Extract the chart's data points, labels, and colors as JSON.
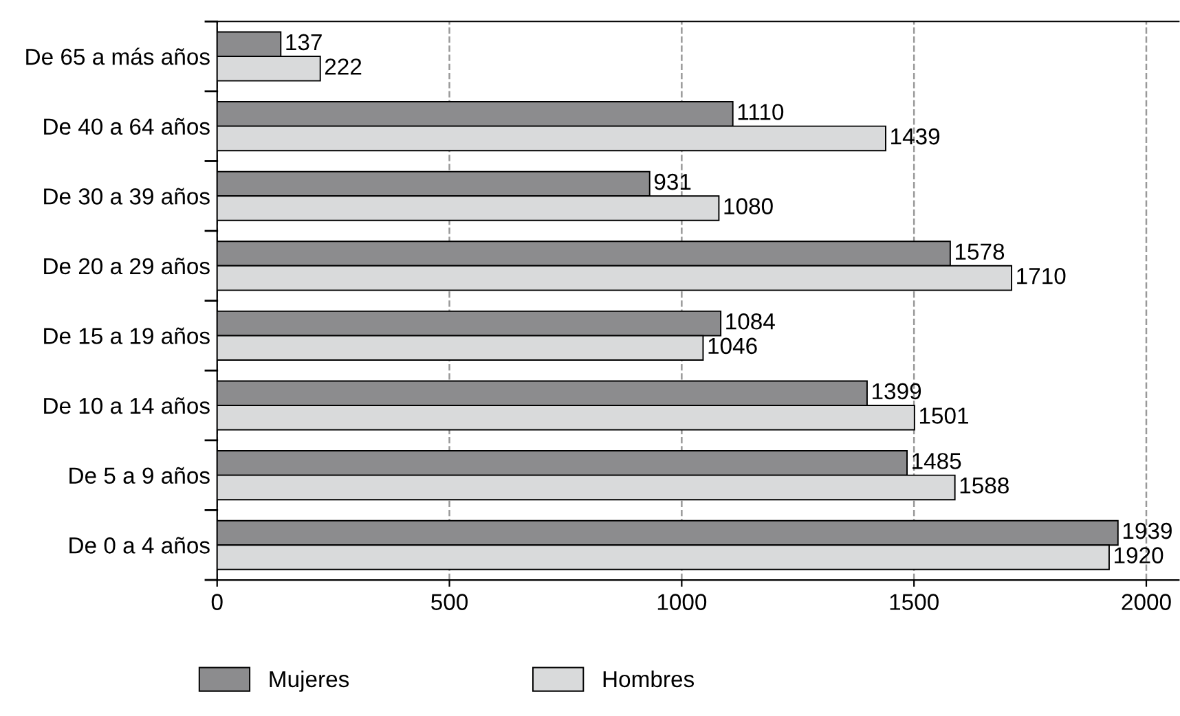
{
  "chart_data": {
    "type": "bar",
    "orientation": "horizontal",
    "categories": [
      "De 65 a más años",
      "De 40 a 64 años",
      "De 30 a 39 años",
      "De 20 a 29 años",
      "De 15 a 19 años",
      "De 10 a 14 años",
      "De 5 a 9 años",
      "De 0 a 4 años"
    ],
    "series": [
      {
        "name": "Mujeres",
        "color": "#8c8c8e",
        "values": [
          137,
          1110,
          931,
          1578,
          1084,
          1399,
          1485,
          1939
        ]
      },
      {
        "name": "Hombres",
        "color": "#d9dadb",
        "values": [
          222,
          1439,
          1080,
          1710,
          1046,
          1501,
          1588,
          1920
        ]
      }
    ],
    "xlim": [
      0,
      2070
    ],
    "xticks": [
      0,
      500,
      1000,
      1500,
      2000
    ],
    "grid": "x",
    "legend": "bottom left",
    "data_labels": true
  }
}
